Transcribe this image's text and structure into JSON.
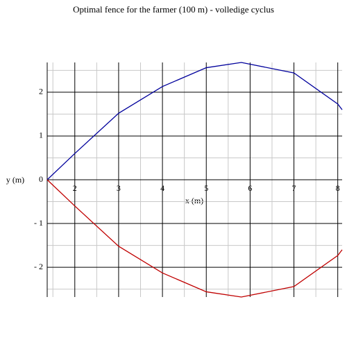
{
  "chart_data": {
    "type": "line",
    "title": "Optimal fence for the farmer (100 m) - volledige cyclus",
    "x_label": "x (m)",
    "y_label": "y (m)",
    "x": [
      1.37,
      2,
      3,
      4,
      5,
      5.8,
      7,
      8,
      8.1
    ],
    "series": [
      {
        "color": "#00009c",
        "values": [
          0,
          0.6,
          1.52,
          2.13,
          2.56,
          2.68,
          2.44,
          1.73,
          1.6
        ]
      },
      {
        "color": "#c00000",
        "values": [
          0,
          -0.6,
          -1.52,
          -2.13,
          -2.56,
          -2.68,
          -2.44,
          -1.73,
          -1.6
        ]
      }
    ],
    "xlim": [
      1.37,
      8.1
    ],
    "ylim": [
      -2.68,
      2.68
    ],
    "xticks": [
      2,
      3,
      4,
      5,
      6,
      7,
      8
    ],
    "yticks": [
      {
        "value": -2,
        "label": "- 2"
      },
      {
        "value": -1,
        "label": "- 1"
      },
      0,
      1,
      2
    ],
    "xminorticks": [
      1.5,
      2.5,
      3.5,
      4.5,
      5.5,
      6.5,
      7.5
    ],
    "yminorticks": [
      -2.5,
      -1.5,
      -0.5,
      0.5,
      1.5,
      2.5
    ],
    "grid": true
  }
}
